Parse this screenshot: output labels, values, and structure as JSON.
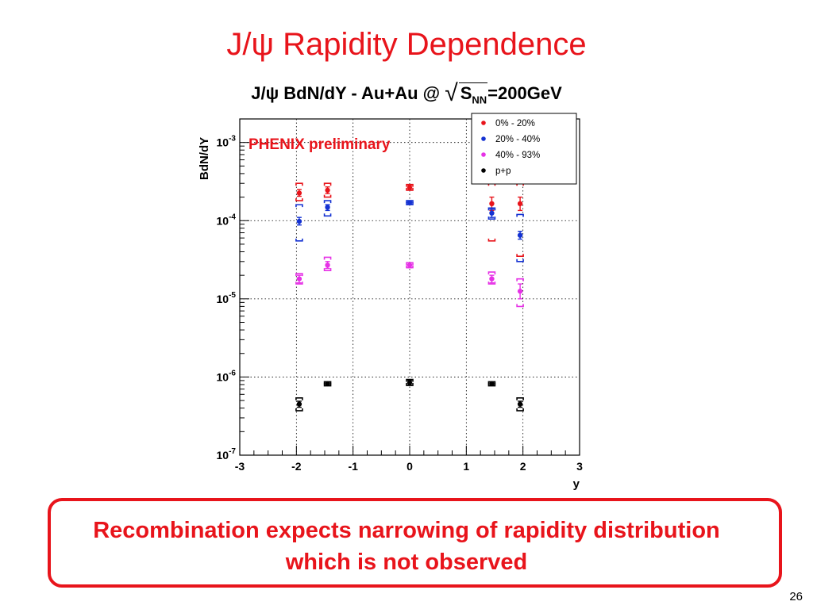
{
  "slide": {
    "title": "J/ψ Rapidity Dependence",
    "plot_title_prefix": "J/ψ BdN/dY - Au+Au @ ",
    "plot_title_radicand_main": "S",
    "plot_title_radicand_sub": "NN",
    "plot_title_suffix": "=200GeV",
    "note_line1": "Recombination expects narrowing of rapidity distribution",
    "note_line2": "which is not observed",
    "page_number": "26"
  },
  "colors": {
    "title_red": "#e8141b",
    "series_0_20": "#e8141b",
    "series_20_40": "#1432d2",
    "series_40_93": "#e632e6",
    "series_pp": "#000000"
  },
  "chart_data": {
    "type": "scatter",
    "title": "J/ψ BdN/dY - Au+Au @ √S_NN=200GeV",
    "xlabel": "y",
    "ylabel": "BdN/dY",
    "x_scale": "linear",
    "y_scale": "log",
    "xlim": [
      -3,
      3
    ],
    "ylim": [
      1e-07,
      0.002
    ],
    "x_ticks": [
      {
        "value": -3,
        "label": "-3"
      },
      {
        "value": -2,
        "label": "-2"
      },
      {
        "value": -1,
        "label": "-1"
      },
      {
        "value": 0,
        "label": "0"
      },
      {
        "value": 1,
        "label": "1"
      },
      {
        "value": 2,
        "label": "2"
      },
      {
        "value": 3,
        "label": "3"
      }
    ],
    "y_ticks": [
      {
        "value": 0.001,
        "base": "10",
        "exp": "-3"
      },
      {
        "value": 0.0001,
        "base": "10",
        "exp": "-4"
      },
      {
        "value": 1e-05,
        "base": "10",
        "exp": "-5"
      },
      {
        "value": 1e-06,
        "base": "10",
        "exp": "-6"
      },
      {
        "value": 1e-07,
        "base": "10",
        "exp": "-7"
      }
    ],
    "grid": true,
    "legend_position": "top-right",
    "annotation": "PHENIX preliminary",
    "series": [
      {
        "name": "0% - 20%",
        "color": "#e8141b",
        "points": [
          {
            "x": -1.95,
            "y": 0.000225,
            "err": [
              0.000205,
              0.00025
            ],
            "sys": [
              0.00018,
              0.0003
            ]
          },
          {
            "x": -1.45,
            "y": 0.000245,
            "err": [
              0.000222,
              0.00027
            ],
            "sys": [
              0.0002,
              0.0003
            ]
          },
          {
            "x": 0.0,
            "y": 0.000265,
            "err": [
              0.000248,
              0.000285
            ],
            "sys": [
              0.000245,
              0.00029
            ]
          },
          {
            "x": 1.45,
            "y": 0.000165,
            "err": [
              0.000135,
              0.0002
            ],
            "sys": [
              5.5e-05,
              0.0003
            ]
          },
          {
            "x": 1.95,
            "y": 0.000165,
            "err": [
              0.000135,
              0.0002
            ],
            "sys": [
              3.5e-05,
              0.0003
            ]
          }
        ]
      },
      {
        "name": "20% - 40%",
        "color": "#1432d2",
        "points": [
          {
            "x": -1.95,
            "y": 9.8e-05,
            "err": [
              8.8e-05,
              0.00011
            ],
            "sys": [
              5.5e-05,
              0.00016
            ]
          },
          {
            "x": -1.45,
            "y": 0.000148,
            "err": [
              0.000135,
              0.00016
            ],
            "sys": [
              0.000115,
              0.00018
            ]
          },
          {
            "x": 0.0,
            "y": 0.00017,
            "err": [
              0.000162,
              0.00018
            ],
            "sys": [
              0.00016,
              0.00018
            ]
          },
          {
            "x": 1.45,
            "y": 0.000125,
            "err": [
              0.00011,
              0.00014
            ],
            "sys": [
              0.000105,
              0.000145
            ]
          },
          {
            "x": 1.95,
            "y": 6.5e-05,
            "err": [
              5.8e-05,
              7.3e-05
            ],
            "sys": [
              3e-05,
              0.00012
            ]
          }
        ]
      },
      {
        "name": "40% - 93%",
        "color": "#e632e6",
        "points": [
          {
            "x": -1.95,
            "y": 1.8e-05,
            "err": [
              1.6e-05,
              2e-05
            ],
            "sys": [
              1.55e-05,
              2.1e-05
            ]
          },
          {
            "x": -1.45,
            "y": 2.7e-05,
            "err": [
              2.45e-05,
              3e-05
            ],
            "sys": [
              2.3e-05,
              3.4e-05
            ]
          },
          {
            "x": 0.0,
            "y": 2.7e-05,
            "err": [
              2.5e-05,
              2.9e-05
            ],
            "sys": [
              2.5e-05,
              2.9e-05
            ]
          },
          {
            "x": 1.45,
            "y": 1.8e-05,
            "err": [
              1.6e-05,
              2e-05
            ],
            "sys": [
              1.55e-05,
              2.2e-05
            ]
          },
          {
            "x": 1.95,
            "y": 1.25e-05,
            "err": [
              1e-05,
              1.55e-05
            ],
            "sys": [
              8e-06,
              1.8e-05
            ]
          }
        ]
      },
      {
        "name": "p+p",
        "color": "#000000",
        "points": [
          {
            "x": -1.95,
            "y": 4.5e-07,
            "err": [
              4.1e-07,
              4.9e-07
            ],
            "sys": [
              3.7e-07,
              5.4e-07
            ]
          },
          {
            "x": -1.45,
            "y": 8.2e-07,
            "err": [
              7.8e-07,
              8.6e-07
            ],
            "sys": [
              7.7e-07,
              8.7e-07
            ]
          },
          {
            "x": 0.0,
            "y": 8.5e-07,
            "err": [
              7.9e-07,
              9.1e-07
            ],
            "sys": [
              7.8e-07,
              9.3e-07
            ]
          },
          {
            "x": 1.45,
            "y": 8.2e-07,
            "err": [
              7.8e-07,
              8.6e-07
            ],
            "sys": [
              7.7e-07,
              8.7e-07
            ]
          },
          {
            "x": 1.95,
            "y": 4.5e-07,
            "err": [
              4.1e-07,
              4.9e-07
            ],
            "sys": [
              3.7e-07,
              5.4e-07
            ]
          }
        ]
      }
    ]
  }
}
